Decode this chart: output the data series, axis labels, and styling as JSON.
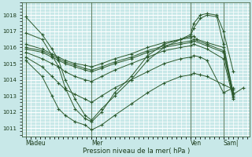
{
  "background_color": "#c8e8e8",
  "plot_bg_color": "#c8e8e8",
  "line_color": "#2d5a2d",
  "marker_color": "#2d5a2d",
  "grid_major_color": "#ffffff",
  "grid_minor_color": "#b8dede",
  "xlabel": "Pression niveau de la mer( hPa )",
  "ylim": [
    1010.5,
    1018.8
  ],
  "yticks": [
    1011,
    1012,
    1013,
    1014,
    1015,
    1016,
    1017,
    1018
  ],
  "xtick_labels": [
    "Màdeu",
    "Mer",
    "Ven",
    "Sam|"
  ],
  "xtick_positions": [
    0,
    2,
    5,
    6
  ],
  "xlim": [
    -0.1,
    6.8
  ],
  "vlines": [
    0,
    2,
    5,
    6
  ],
  "series": [
    {
      "x": [
        0.0,
        0.5,
        0.8,
        1.0,
        1.2,
        1.5,
        1.8,
        2.0,
        2.3,
        2.7,
        3.2,
        3.7,
        4.2,
        4.7,
        5.0,
        5.1,
        5.3,
        5.5,
        5.8,
        6.0,
        6.3
      ],
      "y": [
        1017.9,
        1016.8,
        1015.9,
        1015.2,
        1014.0,
        1012.8,
        1011.8,
        1011.5,
        1012.2,
        1013.0,
        1014.0,
        1015.2,
        1016.0,
        1016.5,
        1016.8,
        1017.5,
        1018.0,
        1018.1,
        1018.0,
        1017.0,
        1014.5
      ]
    },
    {
      "x": [
        0.0,
        0.5,
        0.8,
        1.0,
        1.2,
        1.5,
        1.8,
        2.0,
        2.3,
        2.7,
        3.2,
        3.7,
        4.2,
        4.7,
        5.0,
        5.1,
        5.3,
        5.5,
        5.8,
        6.0,
        6.3,
        6.6
      ],
      "y": [
        1016.9,
        1016.5,
        1015.5,
        1014.8,
        1013.5,
        1012.2,
        1011.6,
        1011.4,
        1012.0,
        1013.2,
        1014.2,
        1015.5,
        1016.2,
        1016.5,
        1016.7,
        1017.2,
        1017.8,
        1018.0,
        1017.9,
        1016.2,
        1013.1,
        1013.5
      ]
    },
    {
      "x": [
        0.0,
        0.5,
        0.8,
        1.0,
        1.2,
        1.5,
        1.8,
        2.0,
        2.3,
        2.7,
        3.2,
        3.7,
        4.2,
        4.7,
        5.0,
        5.1,
        5.2,
        5.5,
        6.0,
        6.3
      ],
      "y": [
        1016.2,
        1015.9,
        1015.6,
        1015.4,
        1015.2,
        1015.0,
        1014.9,
        1014.8,
        1015.0,
        1015.3,
        1015.6,
        1016.0,
        1016.3,
        1016.5,
        1016.6,
        1016.7,
        1016.5,
        1016.3,
        1016.0,
        1013.2
      ]
    },
    {
      "x": [
        0.0,
        0.5,
        0.8,
        1.0,
        1.2,
        1.5,
        1.8,
        2.0,
        2.3,
        2.7,
        3.2,
        3.7,
        4.2,
        4.7,
        5.0,
        5.1,
        5.5,
        6.0,
        6.3
      ],
      "y": [
        1016.0,
        1015.8,
        1015.5,
        1015.3,
        1015.1,
        1014.9,
        1014.7,
        1014.6,
        1014.8,
        1015.1,
        1015.4,
        1015.8,
        1016.1,
        1016.3,
        1016.4,
        1016.5,
        1016.2,
        1015.8,
        1013.0
      ]
    },
    {
      "x": [
        0.0,
        0.5,
        0.8,
        1.0,
        1.2,
        1.5,
        1.8,
        2.0,
        2.3,
        2.7,
        3.2,
        3.7,
        4.2,
        4.7,
        5.0,
        5.1,
        5.5,
        6.0,
        6.3
      ],
      "y": [
        1015.9,
        1015.7,
        1015.4,
        1015.2,
        1015.0,
        1014.8,
        1014.6,
        1014.5,
        1014.7,
        1015.0,
        1015.3,
        1015.7,
        1016.0,
        1016.2,
        1016.3,
        1016.4,
        1016.1,
        1015.7,
        1012.9
      ]
    },
    {
      "x": [
        0.0,
        0.5,
        0.8,
        1.0,
        1.2,
        1.5,
        1.8,
        2.0,
        2.3,
        2.7,
        3.2,
        3.7,
        4.2,
        4.7,
        5.0,
        5.1,
        5.5,
        6.0,
        6.3
      ],
      "y": [
        1015.7,
        1015.3,
        1015.0,
        1014.8,
        1014.5,
        1014.2,
        1014.0,
        1013.9,
        1014.2,
        1014.6,
        1015.0,
        1015.4,
        1015.8,
        1016.0,
        1016.1,
        1016.2,
        1015.9,
        1015.3,
        1012.8
      ]
    },
    {
      "x": [
        0.0,
        0.5,
        0.8,
        1.0,
        1.2,
        1.5,
        1.8,
        2.0,
        2.3,
        2.7,
        3.2,
        3.7,
        4.2,
        4.7,
        5.0,
        5.1,
        5.3,
        5.5,
        6.0,
        6.3
      ],
      "y": [
        1015.4,
        1014.8,
        1014.2,
        1013.8,
        1013.4,
        1013.1,
        1012.8,
        1012.6,
        1013.0,
        1013.5,
        1014.0,
        1014.5,
        1015.0,
        1015.3,
        1015.4,
        1015.5,
        1015.4,
        1015.2,
        1013.2,
        1013.5
      ]
    },
    {
      "x": [
        0.0,
        0.5,
        0.8,
        1.0,
        1.2,
        1.5,
        1.8,
        2.0,
        2.3,
        2.7,
        3.2,
        3.7,
        4.2,
        4.7,
        5.0,
        5.1,
        5.3,
        5.5,
        6.0,
        6.3
      ],
      "y": [
        1015.2,
        1014.2,
        1013.0,
        1012.2,
        1011.8,
        1011.4,
        1011.2,
        1010.9,
        1011.2,
        1011.8,
        1012.5,
        1013.2,
        1013.8,
        1014.2,
        1014.3,
        1014.4,
        1014.3,
        1014.2,
        1013.7,
        1013.4
      ]
    }
  ]
}
